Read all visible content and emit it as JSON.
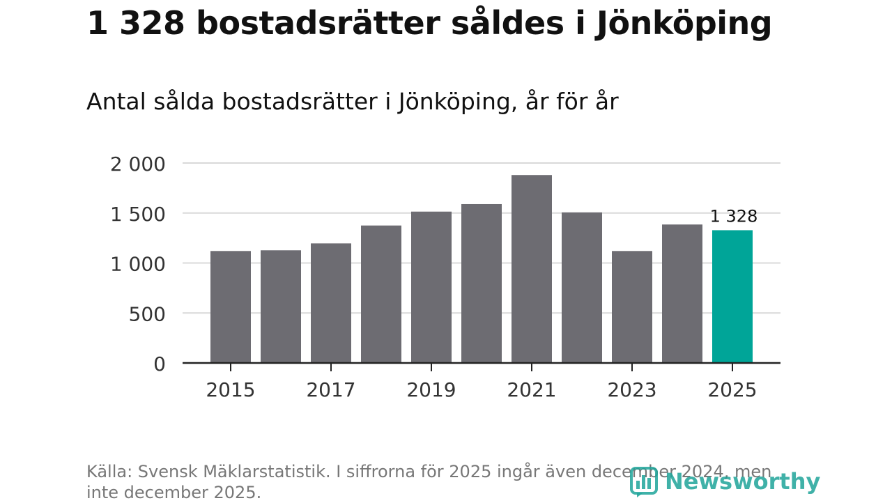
{
  "title": "1 328 bostadsrätter såldes i Jönköping",
  "subtitle": "Antal sålda bostadsrätter i Jönköping, år för år",
  "source": "Källa: Svensk Mäklarstatistik. I siffrorna för 2025 ingår även december 2024, men inte december 2025.",
  "logo_text": "Newsworthy",
  "colors": {
    "bar": "#6d6c72",
    "highlight": "#00a598",
    "grid": "#d9d9d9",
    "axis": "#222222"
  },
  "chart_data": {
    "type": "bar",
    "categories": [
      "2015",
      "2016",
      "2017",
      "2018",
      "2019",
      "2020",
      "2021",
      "2022",
      "2023",
      "2024",
      "2025"
    ],
    "values": [
      1120,
      1127,
      1196,
      1375,
      1514,
      1589,
      1880,
      1506,
      1120,
      1385,
      1328
    ],
    "x_tick_labels": [
      "2015",
      "2017",
      "2019",
      "2021",
      "2023",
      "2025"
    ],
    "y_ticks": [
      0,
      500,
      1000,
      1500,
      2000
    ],
    "y_tick_labels": [
      "0",
      "500",
      "1 000",
      "1 500",
      "2 000"
    ],
    "ylim": [
      0,
      2000
    ],
    "highlight_index": 10,
    "data_labels": [
      {
        "index": 10,
        "text": "1 328"
      }
    ],
    "grid": true,
    "legend": "none"
  }
}
